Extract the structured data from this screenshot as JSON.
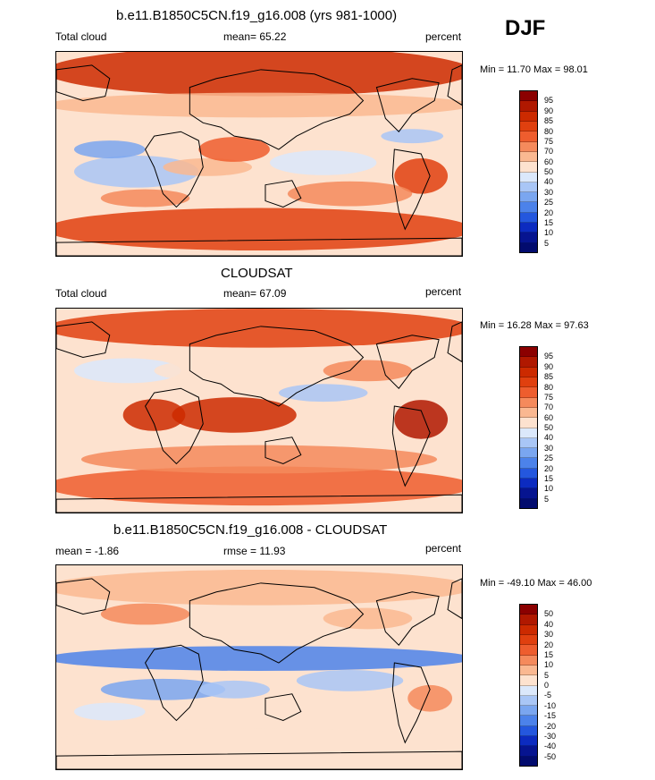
{
  "season": "DJF",
  "panels": [
    {
      "title": "b.e11.B1850C5CN.f19_g16.008 (yrs 981-1000)",
      "left_label": "Total cloud",
      "center_label": "mean=  65.22",
      "units": "percent",
      "min_max": "Min =  11.70 Max =  98.01",
      "colorbar": {
        "levels": [
          "95",
          "90",
          "85",
          "80",
          "75",
          "70",
          "60",
          "50",
          "40",
          "30",
          "25",
          "20",
          "15",
          "10",
          "5"
        ],
        "colors": [
          "#8b0000",
          "#b01800",
          "#cc2a00",
          "#e0400f",
          "#ee5d2e",
          "#f58a5c",
          "#fab891",
          "#fde2cf",
          "#dbe8fb",
          "#a9c6f6",
          "#7aa6f0",
          "#4c82ea",
          "#2457de",
          "#0c2bc0",
          "#061490",
          "#020b6e"
        ]
      },
      "map_theme": "model"
    },
    {
      "title": "CLOUDSAT",
      "left_label": "Total cloud",
      "center_label": "mean=  67.09",
      "units": "percent",
      "min_max": "Min =  16.28 Max =  97.63",
      "colorbar": {
        "levels": [
          "95",
          "90",
          "85",
          "80",
          "75",
          "70",
          "60",
          "50",
          "40",
          "30",
          "25",
          "20",
          "15",
          "10",
          "5"
        ],
        "colors": [
          "#8b0000",
          "#b01800",
          "#cc2a00",
          "#e0400f",
          "#ee5d2e",
          "#f58a5c",
          "#fab891",
          "#fde2cf",
          "#dbe8fb",
          "#a9c6f6",
          "#7aa6f0",
          "#4c82ea",
          "#2457de",
          "#0c2bc0",
          "#061490",
          "#020b6e"
        ]
      },
      "map_theme": "obs"
    },
    {
      "title": "b.e11.B1850C5CN.f19_g16.008 - CLOUDSAT",
      "left_label": "mean =  -1.86",
      "center_label": "rmse =  11.93",
      "units": "percent",
      "min_max": "Min = -49.10 Max =  46.00",
      "colorbar": {
        "levels": [
          "50",
          "40",
          "30",
          "20",
          "15",
          "10",
          "5",
          "0",
          "-5",
          "-10",
          "-15",
          "-20",
          "-30",
          "-40",
          "-50"
        ],
        "colors": [
          "#8b0000",
          "#b01800",
          "#cc2a00",
          "#e0400f",
          "#ee5d2e",
          "#f58a5c",
          "#fab891",
          "#fde2cf",
          "#dbe8fb",
          "#a9c6f6",
          "#7aa6f0",
          "#4c82ea",
          "#2457de",
          "#0c2bc0",
          "#061490",
          "#020b6e"
        ]
      },
      "map_theme": "diff"
    }
  ]
}
